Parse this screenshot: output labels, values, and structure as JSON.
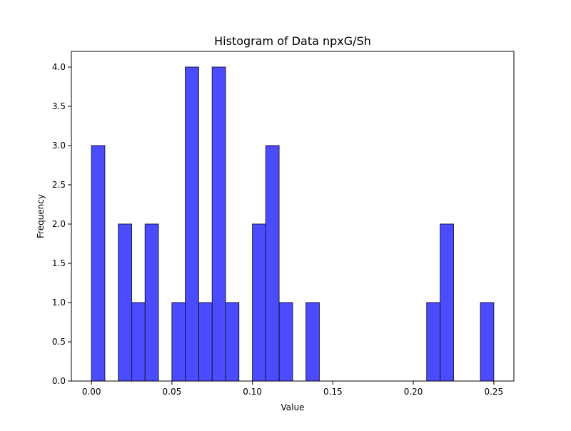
{
  "chart_data": {
    "type": "bar",
    "title": "Histogram of Data npxG/Sh",
    "xlabel": "Value",
    "ylabel": "Frequency",
    "bin_width": 0.0083,
    "bins": [
      {
        "x0": 0.0,
        "count": 3
      },
      {
        "x0": 0.0083,
        "count": 0
      },
      {
        "x0": 0.0167,
        "count": 2
      },
      {
        "x0": 0.025,
        "count": 1
      },
      {
        "x0": 0.0333,
        "count": 2
      },
      {
        "x0": 0.0417,
        "count": 0
      },
      {
        "x0": 0.05,
        "count": 1
      },
      {
        "x0": 0.0583,
        "count": 4
      },
      {
        "x0": 0.0667,
        "count": 1
      },
      {
        "x0": 0.075,
        "count": 4
      },
      {
        "x0": 0.0833,
        "count": 1
      },
      {
        "x0": 0.0917,
        "count": 0
      },
      {
        "x0": 0.1,
        "count": 2
      },
      {
        "x0": 0.1083,
        "count": 3
      },
      {
        "x0": 0.1167,
        "count": 1
      },
      {
        "x0": 0.125,
        "count": 0
      },
      {
        "x0": 0.1333,
        "count": 1
      },
      {
        "x0": 0.1417,
        "count": 0
      },
      {
        "x0": 0.15,
        "count": 0
      },
      {
        "x0": 0.1583,
        "count": 0
      },
      {
        "x0": 0.1667,
        "count": 0
      },
      {
        "x0": 0.175,
        "count": 0
      },
      {
        "x0": 0.1833,
        "count": 0
      },
      {
        "x0": 0.1917,
        "count": 0
      },
      {
        "x0": 0.2,
        "count": 0
      },
      {
        "x0": 0.2083,
        "count": 1
      },
      {
        "x0": 0.2167,
        "count": 2
      },
      {
        "x0": 0.225,
        "count": 0
      },
      {
        "x0": 0.2333,
        "count": 0
      },
      {
        "x0": 0.2417,
        "count": 1
      }
    ],
    "xlim": [
      -0.0125,
      0.2625
    ],
    "ylim": [
      0,
      4.2
    ],
    "x_ticks": [
      "0.00",
      "0.05",
      "0.10",
      "0.15",
      "0.20",
      "0.25"
    ],
    "y_ticks": [
      "0.0",
      "0.5",
      "1.0",
      "1.5",
      "2.0",
      "2.5",
      "3.0",
      "3.5",
      "4.0"
    ],
    "grid": false,
    "legend": "none",
    "bar_color": "#4b4bff",
    "bar_edge_color": "#1a1a40"
  }
}
